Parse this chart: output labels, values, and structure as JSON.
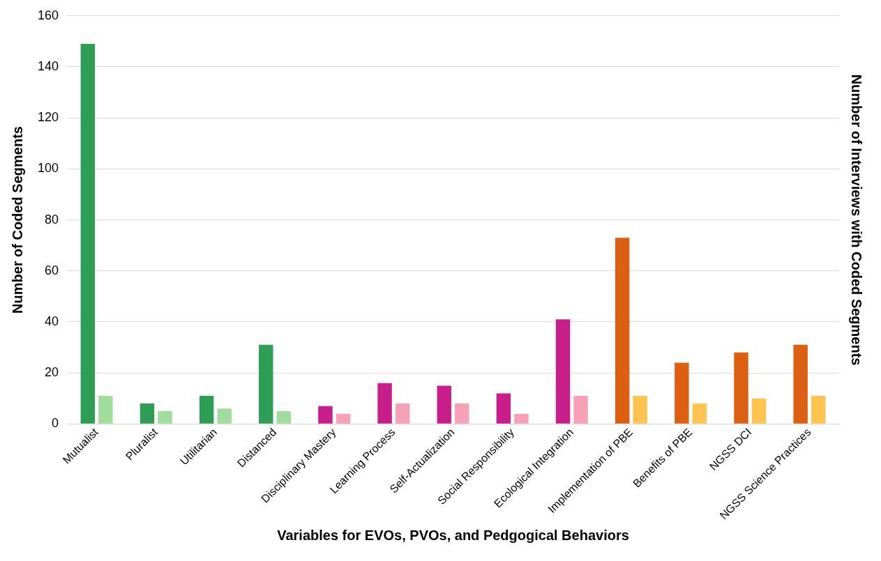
{
  "chart_data": {
    "type": "bar",
    "xlabel": "Variables for EVOs, PVOs, and Pedgogical Behaviors",
    "ylabel": "Number of Coded Segments",
    "y2label": "Number of Interviews with Coded Segments",
    "categories": [
      "Mutualist",
      "Pluralist",
      "Utilitarian",
      "Distanced",
      "Disciplinary Mastery",
      "Learning Process",
      "Self-Actualization",
      "Social Responsibility",
      "Ecological Integration",
      "Implementation of PBE",
      "Benefits of PBE",
      "NGSS DCI",
      "NGSS Science Practices"
    ],
    "series": [
      {
        "values": [
          149,
          8,
          11,
          31,
          7,
          16,
          15,
          12,
          41,
          73,
          24,
          28,
          31
        ],
        "colors": [
          "#2e9e57",
          "#2e9e57",
          "#2e9e57",
          "#2e9e57",
          "#c71e8c",
          "#c71e8c",
          "#c71e8c",
          "#c71e8c",
          "#c71e8c",
          "#dd5f12",
          "#dd5f12",
          "#dd5f12",
          "#dd5f12"
        ]
      },
      {
        "values": [
          11,
          5,
          6,
          5,
          4,
          8,
          8,
          4,
          11,
          11,
          8,
          10,
          11
        ],
        "colors": [
          "#a0dc9c",
          "#a0dc9c",
          "#a0dc9c",
          "#a0dc9c",
          "#f7a1b9",
          "#f7a1b9",
          "#f7a1b9",
          "#f7a1b9",
          "#f7a1b9",
          "#ffc34f",
          "#ffc34f",
          "#ffc34f",
          "#ffc34f"
        ]
      }
    ],
    "ylim": [
      0,
      160
    ],
    "yticks": [
      0,
      20,
      40,
      60,
      80,
      100,
      120,
      140,
      160
    ],
    "grid": "y",
    "legend": false
  }
}
